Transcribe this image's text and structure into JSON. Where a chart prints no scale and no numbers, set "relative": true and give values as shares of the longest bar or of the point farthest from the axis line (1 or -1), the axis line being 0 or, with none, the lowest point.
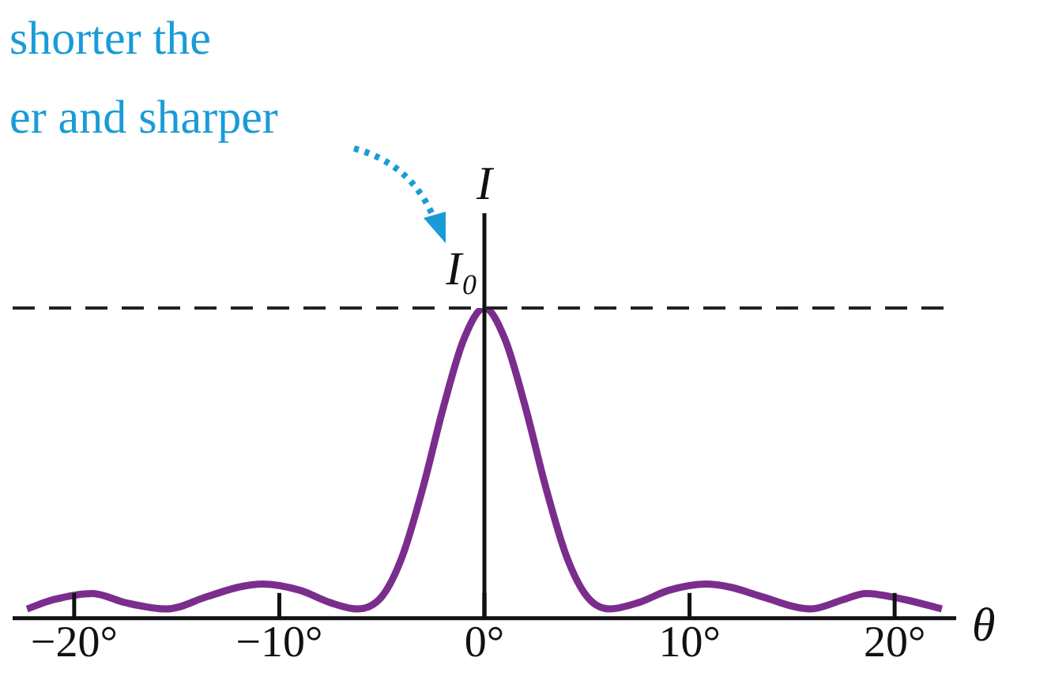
{
  "chart_data": {
    "type": "line",
    "relative": true,
    "xlabel": "θ",
    "ylabel": "I",
    "annotations": [
      "shorter the\ner and sharper"
    ],
    "x": [
      -22.3,
      -21,
      -19.1,
      -17.5,
      -15.5,
      -13.5,
      -12,
      -10.8,
      -9,
      -7.5,
      -6.2,
      -5,
      -4,
      -3,
      -2,
      -1,
      0,
      1,
      2,
      3,
      4,
      5,
      6.1,
      7.5,
      9,
      10.8,
      12,
      13.5,
      15.9,
      17.5,
      18.6,
      20.5,
      22.3
    ],
    "series": [
      {
        "color": "#7b2d8e",
        "values": [
          0.03,
          0.06,
          0.08,
          0.05,
          0.03,
          0.07,
          0.1,
          0.11,
          0.09,
          0.05,
          0.03,
          0.07,
          0.2,
          0.42,
          0.68,
          0.9,
          1,
          0.9,
          0.68,
          0.42,
          0.2,
          0.07,
          0.03,
          0.05,
          0.09,
          0.11,
          0.1,
          0.07,
          0.03,
          0.06,
          0.08,
          0.06,
          0.03
        ]
      }
    ],
    "xlim": [
      -23,
      23
    ],
    "xticks": [
      {
        "value": -20,
        "label": "−20°"
      },
      {
        "value": -10,
        "label": "−10°"
      },
      {
        "value": 0,
        "label": "0°"
      },
      {
        "value": 10,
        "label": "10°"
      },
      {
        "value": 20,
        "label": "20°"
      }
    ],
    "ref_lines": [
      {
        "axis": "y",
        "value": 1,
        "label": "I₀",
        "color": "#222222",
        "line_style": "dashed"
      }
    ],
    "legend": false,
    "marker": "none",
    "line_style": "solid"
  }
}
